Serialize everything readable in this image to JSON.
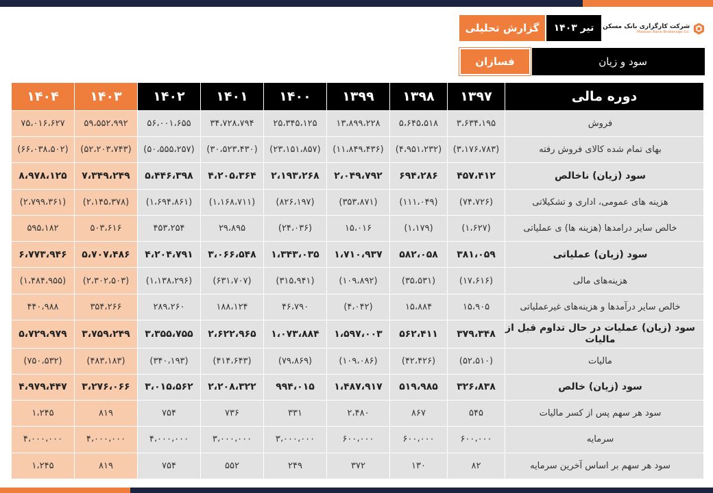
{
  "header": {
    "report_label": "گزارش تحلیلی",
    "date_label": "تیر ۱۴۰۳",
    "company_name": "شرکت کارگزاری بانک مسکن",
    "company_name_en": "Maskan Bank Brokerage Co.",
    "season_label": "فسازان",
    "section_title": "سود و زیان"
  },
  "colors": {
    "accent": "#ef7d3c",
    "dark": "#000000",
    "navy": "#1b2440",
    "negative": "#c00000"
  },
  "table": {
    "label_header": "دوره مالی",
    "years": [
      "۱۴۰۴",
      "۱۴۰۳",
      "۱۴۰۲",
      "۱۴۰۱",
      "۱۴۰۰",
      "۱۳۹۹",
      "۱۳۹۸",
      "۱۳۹۷"
    ],
    "rows": [
      {
        "label": "فروش",
        "values": [
          "۷۵،۰۱۶،۶۲۷",
          "۵۹،۵۵۲،۹۹۲",
          "۵۶،۰۰۱،۶۵۵",
          "۳۴،۷۲۸،۷۹۴",
          "۲۵،۳۴۵،۱۲۵",
          "۱۳،۸۹۹،۲۲۸",
          "۵،۶۴۵،۵۱۸",
          "۳،۶۳۴،۱۹۵"
        ]
      },
      {
        "label": "بهای تمام شده کالای فروش رفته",
        "values": [
          "(۶۶،۰۳۸،۵۰۲)",
          "(۵۲،۲۰۳،۷۴۳)",
          "(۵۰،۵۵۵،۲۵۷)",
          "(۳۰،۵۲۳،۴۳۰)",
          "(۲۳،۱۵۱،۸۵۷)",
          "(۱۱،۸۴۹،۴۳۶)",
          "(۴،۹۵۱،۲۳۲)",
          "(۳،۱۷۶،۷۸۳)"
        ]
      },
      {
        "label": "سود (زیان) ناخالص",
        "values": [
          "۸،۹۷۸،۱۲۵",
          "۷،۳۴۹،۲۴۹",
          "۵،۴۴۶،۳۹۸",
          "۴،۲۰۵،۳۶۴",
          "۲،۱۹۳،۲۶۸",
          "۲،۰۴۹،۷۹۲",
          "۶۹۴،۲۸۶",
          "۴۵۷،۴۱۲"
        ]
      },
      {
        "label": "هزینه های عمومی، اداری و تشکیلاتی",
        "values": [
          "(۲،۷۹۹،۳۶۱)",
          "(۲،۱۴۵،۳۷۸)",
          "(۱،۶۹۴،۸۶۱)",
          "(۱،۱۶۸،۷۱۱)",
          "(۸۲۶،۱۹۷)",
          "(۳۵۳،۸۷۱)",
          "(۱۱۱،۰۴۹)",
          "(۷۴،۷۲۶)"
        ]
      },
      {
        "label": "خالص سایر درامدها (هزینه ها) ی عملیاتی",
        "values": [
          "۵۹۵،۱۸۲",
          "۵۰۳،۶۱۶",
          "۴۵۳،۲۵۴",
          "۲۹،۸۹۵",
          "(۲۴،۰۳۶)",
          "۱۵،۰۱۶",
          "(۱،۱۷۹)",
          "(۱،۶۲۷)"
        ]
      },
      {
        "label": "سود (زیان) عملیاتی",
        "values": [
          "۶،۷۷۳،۹۴۶",
          "۵،۷۰۷،۴۸۶",
          "۴،۲۰۴،۷۹۱",
          "۳،۰۶۶،۵۴۸",
          "۱،۳۴۳،۰۳۵",
          "۱،۷۱۰،۹۳۷",
          "۵۸۲،۰۵۸",
          "۳۸۱،۰۵۹"
        ]
      },
      {
        "label": "هزینه‌های مالی",
        "values": [
          "(۱،۴۸۴،۹۵۵)",
          "(۲،۳۰۲،۵۰۳)",
          "(۱،۱۳۸،۲۹۶)",
          "(۶۳۱،۷۰۷)",
          "(۳۱۵،۹۴۱)",
          "(۱۰۹،۸۹۲)",
          "(۳۵،۵۳۱)",
          "(۱۷،۶۱۶)"
        ]
      },
      {
        "label": "خالص سایر درآمدها و هزینه‌های غیرعملیاتی",
        "values": [
          "۴۴۰،۹۸۸",
          "۳۵۴،۲۶۶",
          "۲۸۹،۲۶۰",
          "۱۸۸،۱۲۴",
          "۴۶،۷۹۰",
          "(۴،۰۴۲)",
          "۱۵،۸۸۴",
          "۱۵،۹۰۵"
        ]
      },
      {
        "label": "سود (زیان) عملیات در حال تداوم قبل از مالیات",
        "values": [
          "۵،۷۲۹،۹۷۹",
          "۳،۷۵۹،۲۴۹",
          "۳،۳۵۵،۷۵۵",
          "۲،۶۲۲،۹۶۵",
          "۱،۰۷۳،۸۸۴",
          "۱،۵۹۷،۰۰۳",
          "۵۶۲،۴۱۱",
          "۳۷۹،۳۴۸"
        ]
      },
      {
        "label": "مالیات",
        "values": [
          "(۷۵۰،۵۳۲)",
          "(۴۸۳،۱۸۳)",
          "(۳۴۰،۱۹۳)",
          "(۴۱۴،۶۴۳)",
          "(۷۹،۸۶۹)",
          "(۱۰۹،۰۸۶)",
          "(۴۲،۴۲۶)",
          "(۵۲،۵۱۰)"
        ]
      },
      {
        "label": "سود (زیان) خالص",
        "values": [
          "۴،۹۷۹،۴۴۷",
          "۳،۲۷۶،۰۶۶",
          "۳،۰۱۵،۵۶۲",
          "۲،۲۰۸،۳۲۲",
          "۹۹۴،۰۱۵",
          "۱،۴۸۷،۹۱۷",
          "۵۱۹،۹۸۵",
          "۳۲۶،۸۳۸"
        ]
      },
      {
        "label": "سود هر سهم پس از کسر مالیات",
        "values": [
          "۱،۲۴۵",
          "۸۱۹",
          "۷۵۴",
          "۷۳۶",
          "۳۳۱",
          "۲،۴۸۰",
          "۸۶۷",
          "۵۴۵"
        ]
      },
      {
        "label": "سرمایه",
        "values": [
          "۴،۰۰۰،۰۰۰",
          "۴،۰۰۰،۰۰۰",
          "۴،۰۰۰،۰۰۰",
          "۳،۰۰۰،۰۰۰",
          "۳،۰۰۰،۰۰۰",
          "۶۰۰،۰۰۰",
          "۶۰۰،۰۰۰",
          "۶۰۰،۰۰۰"
        ]
      },
      {
        "label": "سود هر سهم بر اساس آخرین سرمایه",
        "values": [
          "۱،۲۴۵",
          "۸۱۹",
          "۷۵۴",
          "۵۵۲",
          "۲۴۹",
          "۳۷۲",
          "۱۳۰",
          "۸۲"
        ]
      }
    ]
  }
}
